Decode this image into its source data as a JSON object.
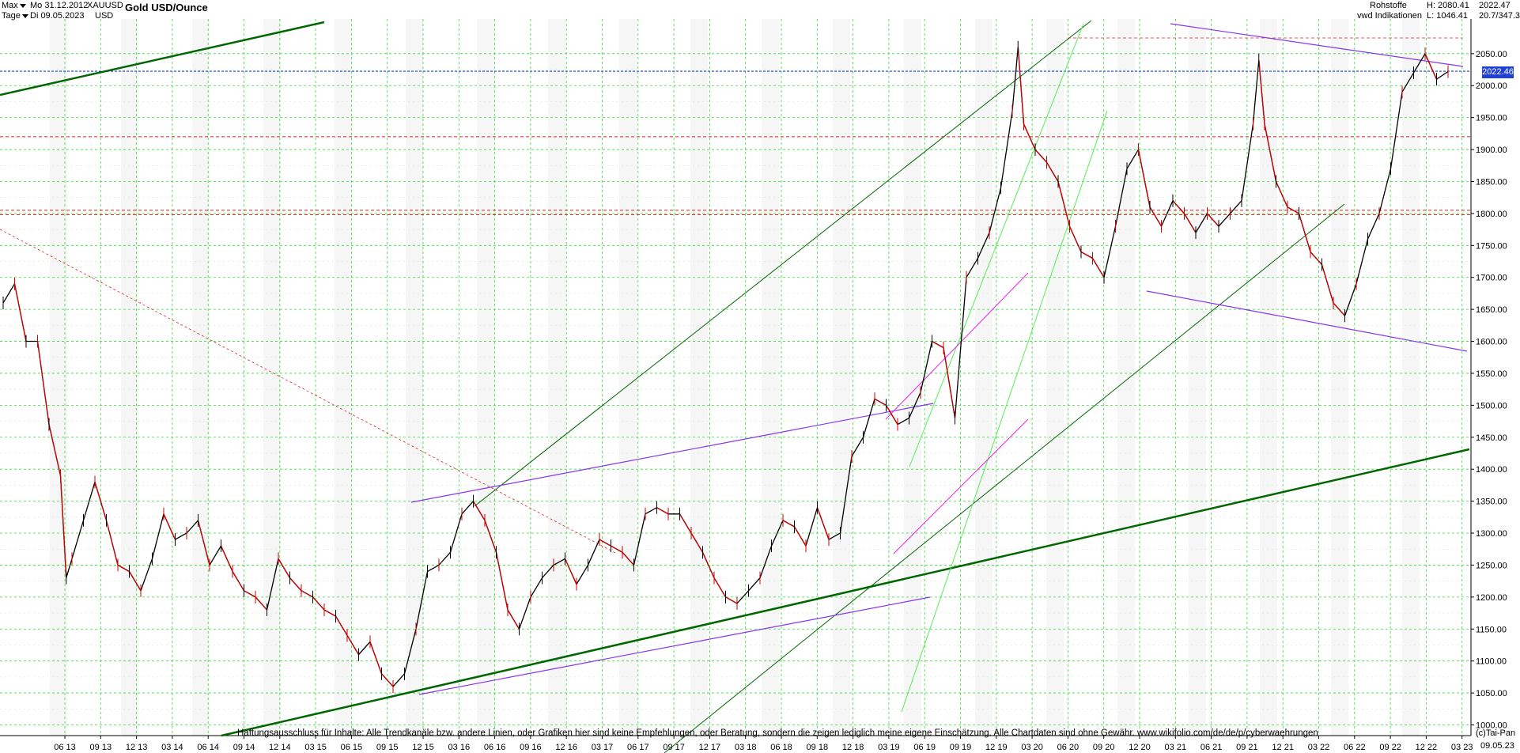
{
  "header": {
    "range_label": "Max",
    "interval_label": "Tage",
    "start_date": "Mo 31.12.2012",
    "end_date": "Di 09.05.2023",
    "symbol": "XAUUSD",
    "currency": "USD",
    "title": "Gold USD/Ounce"
  },
  "info": {
    "category": "Rohstoffe",
    "source": "vwd Indikationen",
    "high": "H: 2080.41",
    "low": "L: 1046.41",
    "last": "2022.47",
    "range_info": "20.7/347.3"
  },
  "current_price_badge": "2022.46",
  "disclaimer": "Haftungsausschluss für Inhalte: Alle Trendkanäle bzw. andere Linien, oder Grafiken hier sind keine Empfehlungen, oder Beratung, sondern die zeigen lediglich meine eigene Einschätzung. Alle Chartdaten sind ohne Gewähr.  www.wikifolio.com/de/de/p/cyberwaehrungen",
  "copyright": "(c)Tai-Pan",
  "last_date_label": "09.05.23",
  "colors": {
    "up": "#000000",
    "down": "#cc0000",
    "grid": "#33dd33",
    "trend_dark": "#006600",
    "trend_purple": "#8833ee",
    "trend_magenta": "#ee22ee",
    "trend_light": "#55ee55",
    "support_red": "#dd2222",
    "price_line": "#1f3fd6"
  },
  "chart_data": {
    "type": "candlestick",
    "title": "Gold USD/Ounce",
    "ylim": [
      990,
      2110
    ],
    "y_ticks": [
      1000,
      1050,
      1100,
      1150,
      1200,
      1250,
      1300,
      1350,
      1400,
      1450,
      1500,
      1550,
      1600,
      1650,
      1700,
      1750,
      1800,
      1850,
      1900,
      1950,
      2000,
      2050
    ],
    "y_tick_labels": [
      "1000.00",
      "1050.00",
      "1100.00",
      "1150.00",
      "1200.00",
      "1250.00",
      "1300.00",
      "1350.00",
      "1400.00",
      "1450.00",
      "1500.00",
      "1550.00",
      "1600.00",
      "1650.00",
      "1700.00",
      "1750.00",
      "1800.00",
      "1850.00",
      "1900.00",
      "1950.00",
      "2000.00",
      "2050.00"
    ],
    "x_ticks": [
      "06 13",
      "09 13",
      "12 13",
      "03 14",
      "06 14",
      "09 14",
      "12 14",
      "03 15",
      "06 15",
      "09 15",
      "12 15",
      "03 16",
      "06 16",
      "09 16",
      "12 16",
      "03 17",
      "06 17",
      "09 17",
      "12 17",
      "03 18",
      "06 18",
      "09 18",
      "12 18",
      "03 19",
      "06 19",
      "09 19",
      "12 19",
      "03 20",
      "06 20",
      "09 20",
      "12 20",
      "03 21",
      "06 21",
      "09 21",
      "12 21",
      "03 22",
      "06 22",
      "09 22",
      "12 22",
      "03 23"
    ],
    "x_range_months": [
      0,
      126.3
    ],
    "grid": true,
    "price_path": [
      [
        0,
        1660
      ],
      [
        1,
        1690
      ],
      [
        2,
        1600
      ],
      [
        3,
        1600
      ],
      [
        4,
        1470
      ],
      [
        5,
        1390
      ],
      [
        5.5,
        1230
      ],
      [
        6,
        1260
      ],
      [
        7,
        1320
      ],
      [
        8,
        1380
      ],
      [
        9,
        1320
      ],
      [
        10,
        1250
      ],
      [
        11,
        1240
      ],
      [
        12,
        1210
      ],
      [
        13,
        1260
      ],
      [
        14,
        1330
      ],
      [
        15,
        1290
      ],
      [
        16,
        1300
      ],
      [
        17,
        1320
      ],
      [
        18,
        1250
      ],
      [
        19,
        1280
      ],
      [
        20,
        1240
      ],
      [
        21,
        1210
      ],
      [
        22,
        1200
      ],
      [
        23,
        1180
      ],
      [
        24,
        1260
      ],
      [
        25,
        1230
      ],
      [
        26,
        1210
      ],
      [
        27,
        1200
      ],
      [
        28,
        1180
      ],
      [
        29,
        1170
      ],
      [
        30,
        1140
      ],
      [
        31,
        1110
      ],
      [
        32,
        1130
      ],
      [
        33,
        1080
      ],
      [
        34,
        1060
      ],
      [
        35,
        1080
      ],
      [
        36,
        1150
      ],
      [
        37,
        1240
      ],
      [
        38,
        1250
      ],
      [
        39,
        1270
      ],
      [
        40,
        1330
      ],
      [
        41,
        1350
      ],
      [
        42,
        1320
      ],
      [
        43,
        1270
      ],
      [
        44,
        1180
      ],
      [
        45,
        1150
      ],
      [
        46,
        1200
      ],
      [
        47,
        1230
      ],
      [
        48,
        1250
      ],
      [
        49,
        1260
      ],
      [
        50,
        1220
      ],
      [
        51,
        1250
      ],
      [
        52,
        1290
      ],
      [
        53,
        1280
      ],
      [
        54,
        1270
      ],
      [
        55,
        1250
      ],
      [
        56,
        1330
      ],
      [
        57,
        1340
      ],
      [
        58,
        1330
      ],
      [
        59,
        1330
      ],
      [
        60,
        1300
      ],
      [
        61,
        1270
      ],
      [
        62,
        1230
      ],
      [
        63,
        1200
      ],
      [
        64,
        1190
      ],
      [
        65,
        1210
      ],
      [
        66,
        1230
      ],
      [
        67,
        1280
      ],
      [
        68,
        1320
      ],
      [
        69,
        1310
      ],
      [
        70,
        1280
      ],
      [
        71,
        1340
      ],
      [
        72,
        1290
      ],
      [
        73,
        1300
      ],
      [
        74,
        1420
      ],
      [
        75,
        1450
      ],
      [
        76,
        1510
      ],
      [
        77,
        1500
      ],
      [
        78,
        1470
      ],
      [
        79,
        1480
      ],
      [
        80,
        1520
      ],
      [
        81,
        1600
      ],
      [
        82,
        1590
      ],
      [
        83,
        1480
      ],
      [
        84,
        1700
      ],
      [
        85,
        1730
      ],
      [
        86,
        1770
      ],
      [
        87,
        1840
      ],
      [
        88,
        1960
      ],
      [
        88.5,
        2060
      ],
      [
        89,
        1940
      ],
      [
        90,
        1900
      ],
      [
        91,
        1880
      ],
      [
        92,
        1850
      ],
      [
        93,
        1780
      ],
      [
        94,
        1740
      ],
      [
        95,
        1730
      ],
      [
        96,
        1700
      ],
      [
        97,
        1780
      ],
      [
        98,
        1870
      ],
      [
        99,
        1900
      ],
      [
        100,
        1810
      ],
      [
        101,
        1780
      ],
      [
        102,
        1820
      ],
      [
        103,
        1800
      ],
      [
        104,
        1770
      ],
      [
        105,
        1800
      ],
      [
        106,
        1780
      ],
      [
        107,
        1800
      ],
      [
        108,
        1820
      ],
      [
        109,
        1940
      ],
      [
        109.5,
        2040
      ],
      [
        110,
        1940
      ],
      [
        111,
        1850
      ],
      [
        112,
        1810
      ],
      [
        113,
        1800
      ],
      [
        114,
        1740
      ],
      [
        115,
        1720
      ],
      [
        116,
        1660
      ],
      [
        117,
        1640
      ],
      [
        118,
        1690
      ],
      [
        119,
        1760
      ],
      [
        120,
        1800
      ],
      [
        121,
        1870
      ],
      [
        122,
        1990
      ],
      [
        123,
        2020
      ],
      [
        124,
        2050
      ],
      [
        125,
        2010
      ],
      [
        126,
        2022
      ]
    ],
    "horizontal_levels": [
      1920,
      1805,
      1798
    ],
    "current_price": 2022.46,
    "high": 2080.41,
    "low": 1046.41
  }
}
